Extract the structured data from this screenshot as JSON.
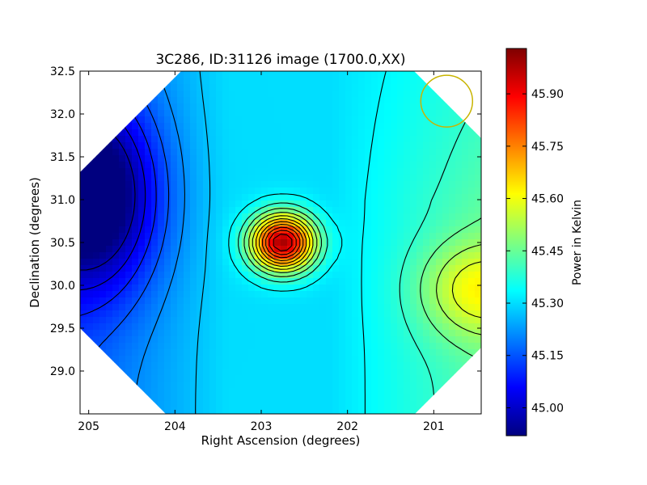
{
  "chart_data": {
    "type": "heatmap",
    "title": "3C286, ID:31126 image (1700.0,XX)",
    "xlabel": "Right Ascension (degrees)",
    "ylabel": "Declination (degrees)",
    "xlim": [
      205.1,
      200.45
    ],
    "ylim": [
      28.5,
      32.5
    ],
    "x_ticks": [
      {
        "value": 205,
        "label": "205"
      },
      {
        "value": 204,
        "label": "204"
      },
      {
        "value": 203,
        "label": "203"
      },
      {
        "value": 202,
        "label": "202"
      },
      {
        "value": 201,
        "label": "201"
      }
    ],
    "y_ticks": [
      {
        "value": 29.0,
        "label": "29.0"
      },
      {
        "value": 29.5,
        "label": "29.5"
      },
      {
        "value": 30.0,
        "label": "30.0"
      },
      {
        "value": 30.5,
        "label": "30.5"
      },
      {
        "value": 31.0,
        "label": "31.0"
      },
      {
        "value": 31.5,
        "label": "31.5"
      },
      {
        "value": 32.0,
        "label": "32.0"
      },
      {
        "value": 32.5,
        "label": "32.5"
      }
    ],
    "colorbar": {
      "label": "Power in Kelvin",
      "min": 44.92,
      "max": 46.03,
      "ticks": [
        {
          "value": 45.0,
          "label": "45.00"
        },
        {
          "value": 45.15,
          "label": "45.15"
        },
        {
          "value": 45.3,
          "label": "45.30"
        },
        {
          "value": 45.45,
          "label": "45.45"
        },
        {
          "value": 45.6,
          "label": "45.60"
        },
        {
          "value": 45.75,
          "label": "45.75"
        },
        {
          "value": 45.9,
          "label": "45.90"
        }
      ],
      "colormap": [
        "#00007f",
        "#0000ff",
        "#007fff",
        "#00ffff",
        "#7fff7f",
        "#ffff00",
        "#ff7f00",
        "#ff0000",
        "#7f0000"
      ]
    },
    "features": {
      "hot_spot": {
        "ra": 202.75,
        "dec": 30.5,
        "value": 46.0
      },
      "cold_spot": {
        "ra": 204.95,
        "dec": 31.05,
        "value": 44.93
      },
      "secondary_warm": {
        "ra": 200.5,
        "dec": 29.95,
        "value": 45.6
      },
      "background_level": 45.3
    },
    "beam_circle": {
      "ra": 200.85,
      "dec": 32.15,
      "radius_deg": 0.3,
      "color": "#c8b400"
    },
    "contour_color": "#000000"
  }
}
